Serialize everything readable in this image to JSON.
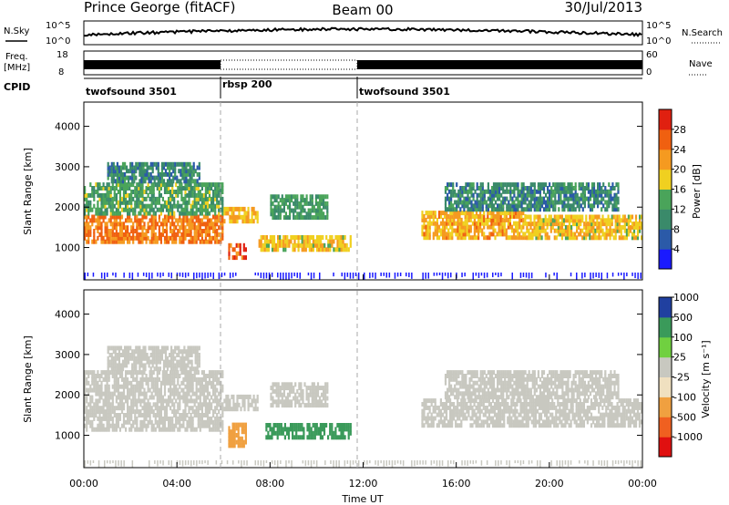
{
  "header": {
    "station": "Prince George (fitACF)",
    "beam": "Beam 00",
    "date": "30/Jul/2013"
  },
  "top_panels": {
    "nsky_label": "N.Sky",
    "nsky_ticks": [
      "10^5",
      "10^0"
    ],
    "nsearch_label": "N.Search",
    "nsearch_ticks": [
      "10^5",
      "10^0"
    ],
    "freq_label_1": "Freq.",
    "freq_label_2": "[MHz]",
    "freq_ticks": [
      "18",
      "8"
    ],
    "nave_label": "Nave",
    "nave_ticks": [
      "60",
      "0"
    ],
    "cpid_label": "CPID",
    "cpid_segments": [
      {
        "name": "twofsound 3501",
        "start": 0,
        "end": 6
      },
      {
        "name": "rbsp 200",
        "start": 6,
        "end": 12
      },
      {
        "name": "twofsound 3501",
        "start": 12,
        "end": 24
      }
    ]
  },
  "colors": {
    "power": [
      "#1a1aff",
      "#2b5aa8",
      "#3a8a6a",
      "#4aa45a",
      "#f0d020",
      "#f59a20",
      "#f06010",
      "#e02010"
    ],
    "velocity": [
      "#e01010",
      "#f06020",
      "#f0a040",
      "#f0e0c0",
      "#c8c8c0",
      "#70d040",
      "#3a9a5a",
      "#2040a0"
    ],
    "frame": "#000000"
  },
  "chart_data": [
    {
      "type": "heatmap",
      "name": "power",
      "ylabel": "Slant Range [km]",
      "xlabel": "",
      "x_ticks": [],
      "y_ticks": [
        "1000",
        "2000",
        "3000",
        "4000"
      ],
      "xlim": [
        0,
        24
      ],
      "ylim": [
        200,
        4600
      ],
      "colorbar": {
        "label": "Power [dB]",
        "ticks": [
          "4",
          "8",
          "12",
          "16",
          "20",
          "24",
          "28"
        ],
        "range": [
          0,
          32
        ]
      },
      "bands": [
        {
          "t0": 0.0,
          "t1": 6.0,
          "r0": 1100,
          "r1": 1800,
          "value": 24
        },
        {
          "t0": 0.0,
          "t1": 6.0,
          "r0": 1800,
          "r1": 2600,
          "value": 13
        },
        {
          "t0": 1.0,
          "t1": 5.0,
          "r0": 2600,
          "r1": 3100,
          "value": 10
        },
        {
          "t0": 6.0,
          "t1": 7.5,
          "r0": 1600,
          "r1": 2000,
          "value": 20
        },
        {
          "t0": 6.2,
          "t1": 7.0,
          "r0": 700,
          "r1": 1100,
          "value": 27
        },
        {
          "t0": 7.5,
          "t1": 11.5,
          "r0": 900,
          "r1": 1300,
          "value": 19
        },
        {
          "t0": 8.0,
          "t1": 10.5,
          "r0": 1700,
          "r1": 2300,
          "value": 12
        },
        {
          "t0": 14.5,
          "t1": 19.0,
          "r0": 1200,
          "r1": 1900,
          "value": 21
        },
        {
          "t0": 19.0,
          "t1": 24.0,
          "r0": 1200,
          "r1": 1800,
          "value": 19
        },
        {
          "t0": 15.5,
          "t1": 23.0,
          "r0": 1900,
          "r1": 2600,
          "value": 10
        }
      ]
    },
    {
      "type": "heatmap",
      "name": "velocity",
      "ylabel": "Slant Range [km]",
      "xlabel": "Time UT",
      "x_ticks": [
        "00:00",
        "04:00",
        "08:00",
        "12:00",
        "16:00",
        "20:00",
        "00:00"
      ],
      "y_ticks": [
        "1000",
        "2000",
        "3000",
        "4000"
      ],
      "xlim": [
        0,
        24
      ],
      "ylim": [
        200,
        4600
      ],
      "colorbar": {
        "label": "Velocity [m s⁻¹]",
        "ticks": [
          "-1000",
          "-500",
          "-100",
          "-25",
          "25",
          "100",
          "500",
          "1000"
        ],
        "range": [
          -1500,
          1500
        ]
      },
      "bands": [
        {
          "t0": 0.0,
          "t1": 6.0,
          "r0": 1100,
          "r1": 2600,
          "value": 0
        },
        {
          "t0": 1.0,
          "t1": 5.0,
          "r0": 2600,
          "r1": 3200,
          "value": 0
        },
        {
          "t0": 6.0,
          "t1": 7.5,
          "r0": 1600,
          "r1": 2000,
          "value": 0
        },
        {
          "t0": 6.2,
          "t1": 7.0,
          "r0": 700,
          "r1": 1300,
          "value": -400
        },
        {
          "t0": 7.8,
          "t1": 11.5,
          "r0": 900,
          "r1": 1300,
          "value": 150
        },
        {
          "t0": 8.0,
          "t1": 10.5,
          "r0": 1700,
          "r1": 2300,
          "value": 0
        },
        {
          "t0": 14.5,
          "t1": 24.0,
          "r0": 1200,
          "r1": 1900,
          "value": 0
        },
        {
          "t0": 15.5,
          "t1": 23.0,
          "r0": 1900,
          "r1": 2600,
          "value": 0
        }
      ]
    }
  ]
}
